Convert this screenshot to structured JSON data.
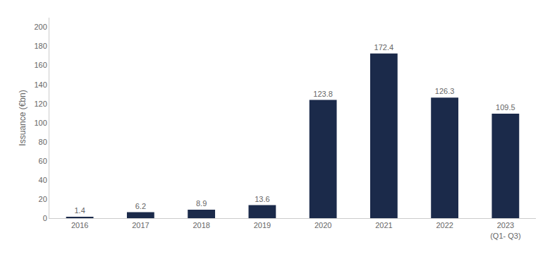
{
  "chart_data": {
    "type": "bar",
    "categories": [
      "2016",
      "2017",
      "2018",
      "2019",
      "2020",
      "2021",
      "2022",
      "2023\n(Q1- Q3)"
    ],
    "values": [
      1.4,
      6.2,
      8.9,
      13.6,
      123.8,
      172.4,
      126.3,
      109.5
    ],
    "color": "#1b2a4a",
    "ylabel": "Issuance (€bn)",
    "ylim": [
      0,
      210
    ],
    "yticks": [
      0,
      20,
      40,
      60,
      80,
      100,
      120,
      140,
      160,
      180,
      200
    ],
    "grid": false,
    "data_labels": true
  }
}
